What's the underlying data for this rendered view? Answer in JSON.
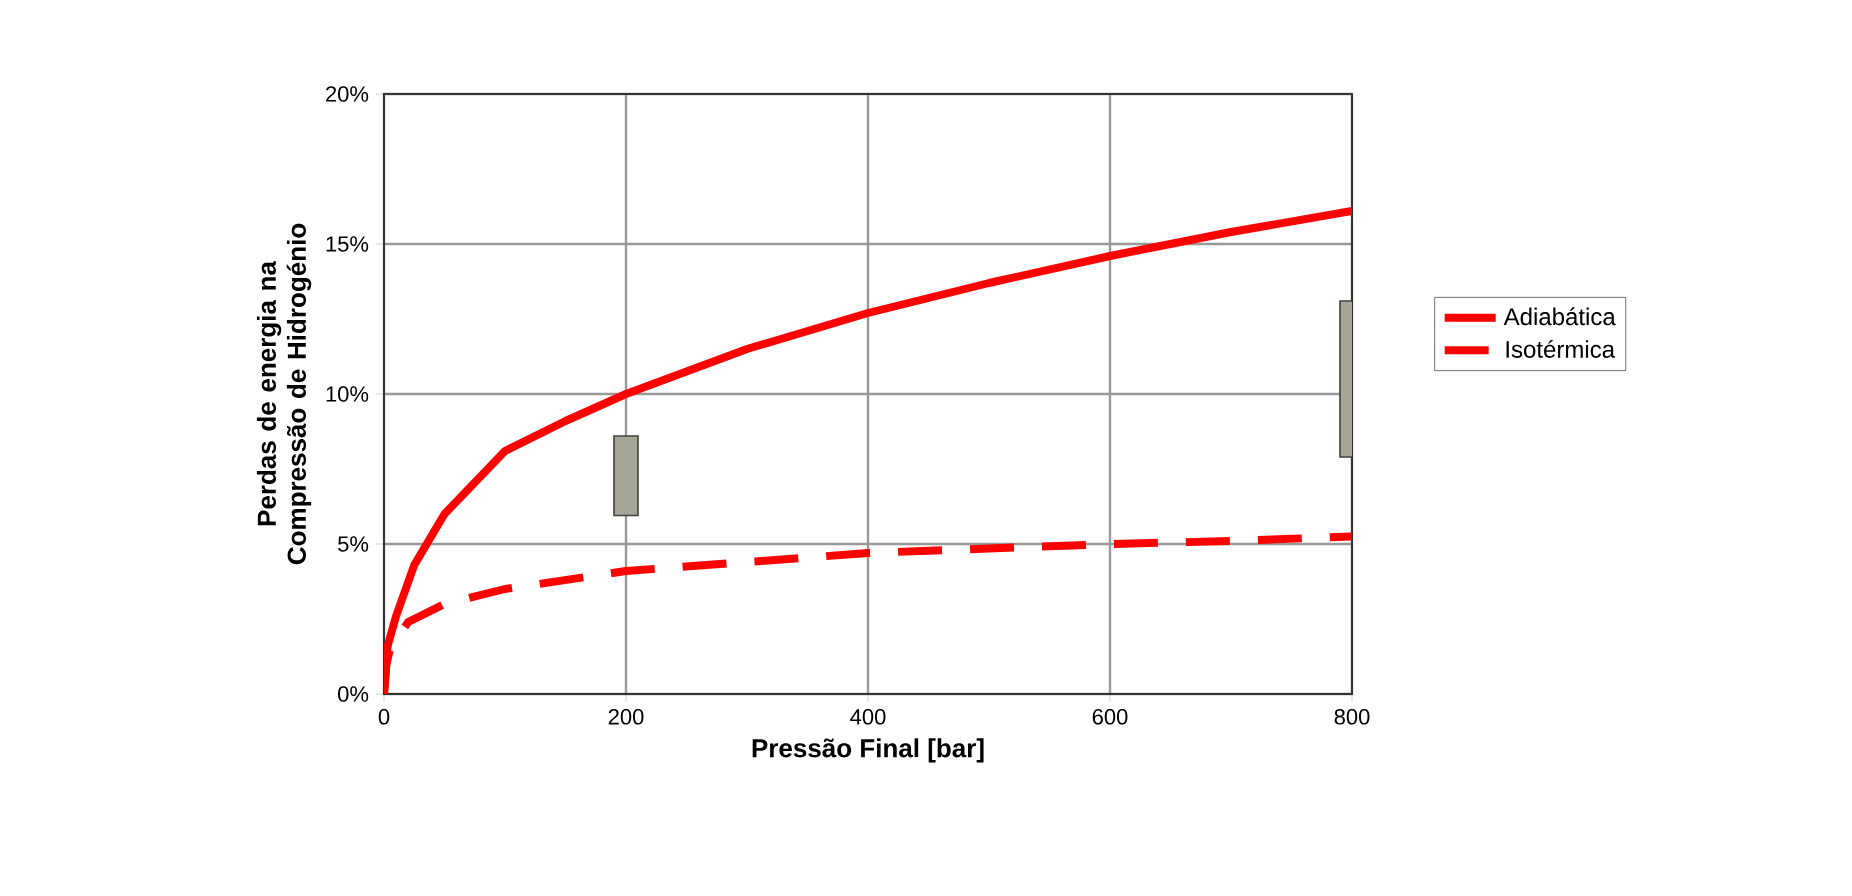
{
  "chart_data": {
    "type": "line",
    "xlabel": "Pressão Final [bar]",
    "ylabel": "Perdas de energia na Compressão de Hidrogénio",
    "xlim": [
      0,
      800
    ],
    "ylim": [
      0,
      20
    ],
    "xticks": [
      0,
      200,
      400,
      600,
      800
    ],
    "yticks": [
      {
        "value": 0,
        "label": "0%"
      },
      {
        "value": 5,
        "label": "5%"
      },
      {
        "value": 10,
        "label": "10%"
      },
      {
        "value": 15,
        "label": "15%"
      },
      {
        "value": 20,
        "label": "20%"
      }
    ],
    "grid": true,
    "legend": "right",
    "series": [
      {
        "name": "Adiabática",
        "color": "#ff0000",
        "line_style": "solid",
        "x": [
          0,
          3,
          10,
          25,
          50,
          100,
          150,
          200,
          300,
          400,
          500,
          600,
          700,
          800
        ],
        "values": [
          0,
          1.6,
          2.6,
          4.3,
          6.0,
          8.1,
          9.1,
          10.0,
          11.5,
          12.7,
          13.7,
          14.6,
          15.4,
          16.1
        ]
      },
      {
        "name": "Isotérmica",
        "color": "#ff0000",
        "line_style": "dashed",
        "x": [
          0,
          2,
          5,
          20,
          50,
          100,
          150,
          200,
          300,
          400,
          500,
          600,
          700,
          800
        ],
        "values": [
          0,
          1.0,
          1.5,
          2.4,
          3.0,
          3.5,
          3.8,
          4.1,
          4.4,
          4.7,
          4.85,
          5.0,
          5.1,
          5.25
        ]
      },
      {
        "type": "bar",
        "color": "#a6a696",
        "x": [
          200,
          800
        ],
        "base": [
          5.95,
          7.9
        ],
        "values": [
          2.65,
          5.2
        ]
      }
    ]
  }
}
